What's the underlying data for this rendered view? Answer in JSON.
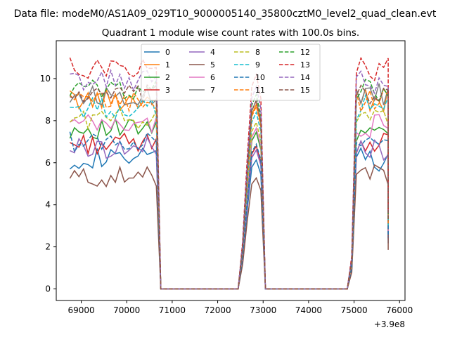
{
  "figure": {
    "suptitle": "Data file: modeM0/AS1A09_029T10_9000005140_35800cztM0_level2_quad_clean.evt"
  },
  "chart_data": {
    "type": "line",
    "title": "Quadrant 1 module wise count rates with 100.0s bins.",
    "xlabel": "",
    "ylabel": "",
    "x_offset_label": "+3.9e8",
    "xlim": [
      68450,
      76120
    ],
    "ylim": [
      -0.55,
      11.8
    ],
    "xticks": [
      69000,
      70000,
      71000,
      72000,
      73000,
      74000,
      75000,
      76000
    ],
    "yticks": [
      0,
      2,
      4,
      6,
      8,
      10
    ],
    "grid": false,
    "legend": {
      "placement": "top-center",
      "columns": 4
    },
    "series": [
      {
        "name": "0",
        "color": "#1f77b4",
        "dash": "solid",
        "level": 6.2
      },
      {
        "name": "1",
        "color": "#ff7f0e",
        "dash": "solid",
        "level": 9.0
      },
      {
        "name": "2",
        "color": "#2ca02c",
        "dash": "solid",
        "level": 7.6
      },
      {
        "name": "3",
        "color": "#d62728",
        "dash": "solid",
        "level": 6.9
      },
      {
        "name": "4",
        "color": "#9467bd",
        "dash": "solid",
        "level": 6.7
      },
      {
        "name": "5",
        "color": "#8c564b",
        "dash": "solid",
        "level": 5.3
      },
      {
        "name": "6",
        "color": "#e377c2",
        "dash": "solid",
        "level": 7.8
      },
      {
        "name": "7",
        "color": "#7f7f7f",
        "dash": "solid",
        "level": 9.2
      },
      {
        "name": "8",
        "color": "#bcbd22",
        "dash": "dashed",
        "level": 8.1
      },
      {
        "name": "9",
        "color": "#17becf",
        "dash": "dashed",
        "level": 8.6
      },
      {
        "name": "10",
        "color": "#1f77b4",
        "dash": "dashed",
        "level": 7.0
      },
      {
        "name": "11",
        "color": "#ff7f0e",
        "dash": "dashed",
        "level": 8.9
      },
      {
        "name": "12",
        "color": "#2ca02c",
        "dash": "dashed",
        "level": 9.5
      },
      {
        "name": "13",
        "color": "#d62728",
        "dash": "dashed",
        "level": 10.5
      },
      {
        "name": "14",
        "color": "#9467bd",
        "dash": "dashed",
        "level": 9.9
      },
      {
        "name": "15",
        "color": "#8c564b",
        "dash": "dashed",
        "level": 9.2
      }
    ],
    "segments": [
      {
        "x_start": 68750,
        "x_end": 70650,
        "step": 100
      },
      {
        "x_start": 72550,
        "x_end": 73000,
        "step": 100
      },
      {
        "x_start": 74950,
        "x_end": 75750,
        "step": 100
      }
    ],
    "zero_ranges": [
      [
        70750,
        72450
      ],
      [
        73050,
        74850
      ]
    ]
  }
}
